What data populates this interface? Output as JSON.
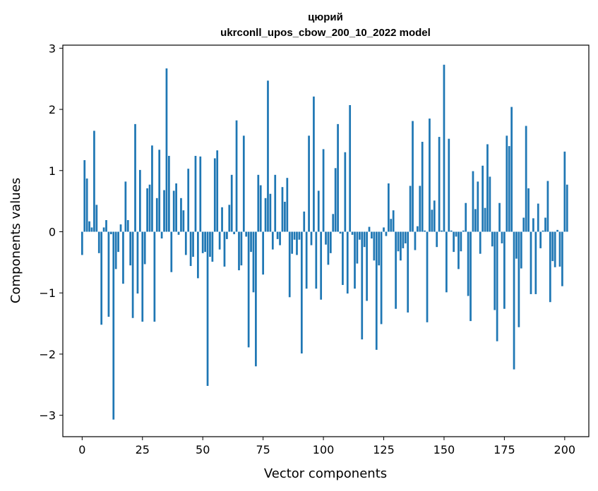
{
  "chart_data": {
    "type": "bar",
    "title": "цюрий",
    "subtitle": "ukrconll_upos_cbow_200_10_2022 model",
    "xlabel": "Vector components",
    "ylabel": "Components values",
    "xlim": [
      -8,
      210
    ],
    "ylim": [
      -3.35,
      3.05
    ],
    "xticks": [
      0,
      25,
      50,
      75,
      100,
      125,
      150,
      175,
      200
    ],
    "yticks": [
      -3,
      -2,
      -1,
      0,
      1,
      2,
      3
    ],
    "grid": false,
    "bar_color": "#1f77b4",
    "values": [
      -0.38,
      1.17,
      0.87,
      0.17,
      0.07,
      1.65,
      0.44,
      -0.35,
      -1.52,
      0.07,
      0.19,
      -1.39,
      -0.04,
      -3.07,
      -0.61,
      -0.33,
      0.12,
      -0.85,
      0.82,
      0.19,
      -0.55,
      -1.41,
      1.76,
      -1.01,
      1.01,
      -1.47,
      -0.53,
      0.71,
      0.77,
      1.41,
      -1.47,
      0.55,
      1.34,
      -0.11,
      0.68,
      2.67,
      1.24,
      -0.66,
      0.67,
      0.79,
      -0.05,
      0.55,
      0.35,
      -0.38,
      1.03,
      -0.56,
      -0.41,
      1.24,
      -0.76,
      1.23,
      -0.35,
      -0.33,
      -2.52,
      -0.41,
      -0.49,
      1.2,
      1.33,
      -0.29,
      0.4,
      -0.57,
      -0.12,
      0.44,
      0.93,
      -0.04,
      1.82,
      -0.63,
      -0.55,
      1.57,
      -0.08,
      -1.89,
      -0.33,
      -0.99,
      -2.2,
      0.93,
      0.76,
      -0.7,
      0.55,
      2.47,
      0.62,
      -0.29,
      0.93,
      -0.12,
      -0.22,
      0.73,
      0.49,
      0.88,
      -1.07,
      -0.36,
      -0.13,
      -0.38,
      -0.13,
      -1.99,
      0.33,
      -0.93,
      1.57,
      -0.22,
      2.21,
      -0.93,
      0.67,
      -1.11,
      1.35,
      -0.21,
      -0.54,
      -0.35,
      0.29,
      1.04,
      1.76,
      -0.03,
      -0.87,
      1.3,
      -1.01,
      2.07,
      -0.05,
      -0.93,
      -0.52,
      -0.13,
      -1.76,
      -0.25,
      -1.13,
      0.08,
      -0.11,
      -0.47,
      -1.93,
      -0.55,
      -1.51,
      0.07,
      -0.07,
      0.79,
      0.21,
      0.35,
      -1.26,
      -0.32,
      -0.47,
      -0.27,
      -0.19,
      -1.32,
      0.75,
      1.81,
      -0.3,
      0.09,
      0.75,
      1.47,
      0.02,
      -1.48,
      1.85,
      0.36,
      0.51,
      -0.25,
      1.55,
      0.02,
      2.73,
      -0.99,
      1.52,
      0.02,
      -0.33,
      -0.08,
      -0.61,
      -0.32,
      0.02,
      0.47,
      -1.05,
      -1.46,
      0.99,
      0.37,
      0.82,
      -0.36,
      1.08,
      0.39,
      1.43,
      0.9,
      -0.24,
      -1.28,
      -1.79,
      0.47,
      -0.19,
      -1.26,
      1.57,
      1.4,
      2.04,
      -2.25,
      -0.44,
      -1.56,
      -0.6,
      0.23,
      1.73,
      0.71,
      -1.02,
      0.22,
      -1.02,
      0.46,
      -0.27,
      0.02,
      0.23,
      0.83,
      -1.15,
      -0.48,
      -0.58,
      0.03,
      -0.57,
      -0.89,
      1.31,
      0.77
    ]
  }
}
